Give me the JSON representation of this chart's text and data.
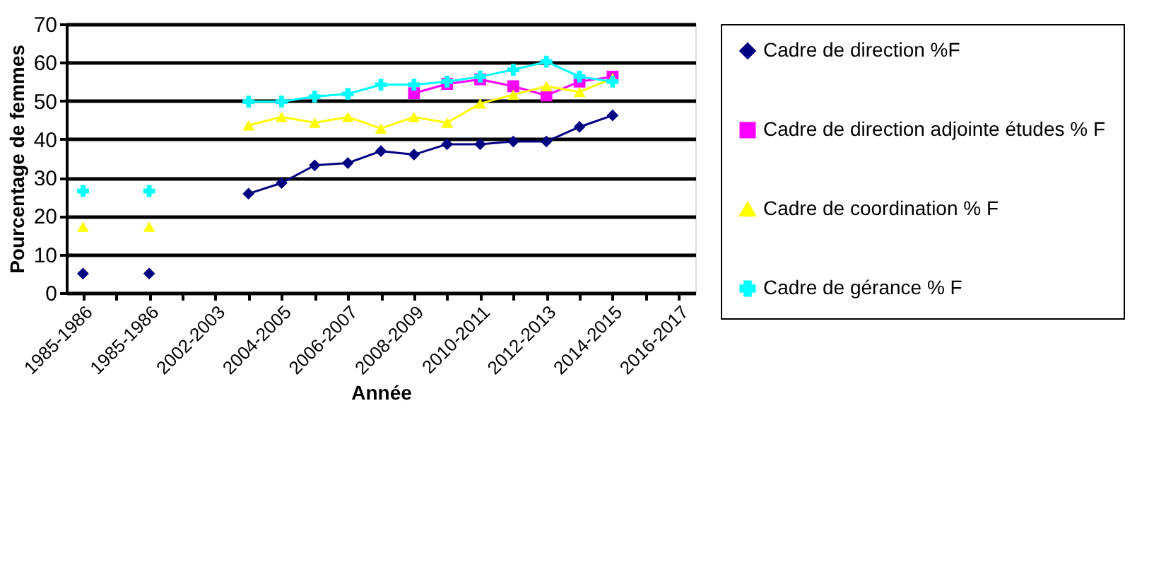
{
  "chart_data": {
    "type": "line",
    "xlabel": "Année",
    "ylabel": "Pourcentage de femmes",
    "categories": [
      "1985-1986",
      null,
      "1985-1986",
      null,
      "2002-2003",
      null,
      "2004-2005",
      null,
      "2006-2007",
      null,
      "2008-2009",
      null,
      "2010-2011",
      null,
      "2012-2013",
      null,
      "2014-2015",
      null,
      "2016-2017"
    ],
    "series": [
      {
        "name": "Cadre de direction %F",
        "color": "#000080",
        "marker": "diamond",
        "values": [
          5,
          null,
          5,
          null,
          null,
          25.8,
          28.6,
          33.2,
          33.8,
          36.9,
          36,
          38.7,
          38.7,
          39.4,
          39.4,
          43.2,
          46.2,
          null,
          null
        ]
      },
      {
        "name": "Cadre de direction adjointe études % F",
        "color": "#ff00ff",
        "marker": "square",
        "values": [
          null,
          null,
          null,
          null,
          null,
          null,
          null,
          null,
          null,
          null,
          52,
          54.4,
          55.6,
          53.8,
          51.4,
          55,
          56.3,
          null,
          null
        ]
      },
      {
        "name": "Cadre de coordination % F",
        "color": "#ffff00",
        "marker": "triangle",
        "values": [
          17.2,
          null,
          17.2,
          null,
          null,
          43.6,
          45.8,
          44.3,
          45.8,
          42.8,
          45.8,
          44.3,
          49.3,
          51.6,
          53.8,
          52.3,
          55.9,
          null,
          null
        ]
      },
      {
        "name": "Cadre de gérance % F",
        "color": "#00ffff",
        "marker": "cross",
        "values": [
          26.5,
          null,
          26.5,
          null,
          null,
          49.8,
          49.8,
          51.1,
          51.8,
          54.2,
          54.2,
          55,
          56.3,
          58.1,
          60.2,
          56.3,
          55,
          null,
          null
        ]
      }
    ],
    "ylim": [
      0,
      70
    ],
    "yticks": [
      0,
      10,
      20,
      30,
      40,
      50,
      60,
      70
    ],
    "grid": "y",
    "legend": "right",
    "line_style": "solid"
  }
}
